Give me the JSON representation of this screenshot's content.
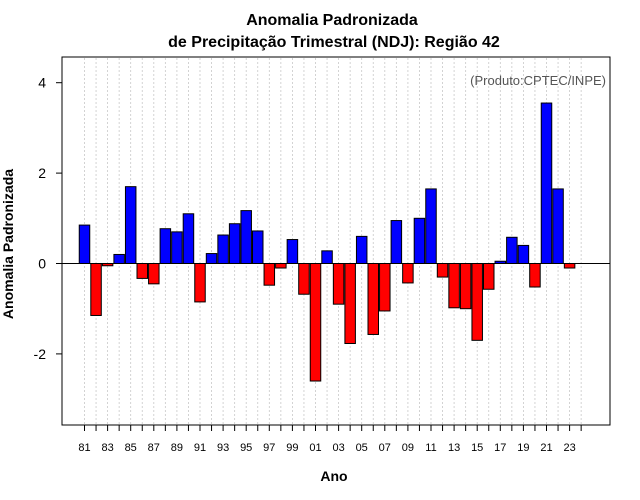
{
  "chart_data": {
    "type": "bar",
    "title_line1": "Anomalia Padronizada",
    "title_line2": "de Precipitação Trimestral (NDJ): Região 42",
    "xlabel": "Ano",
    "ylabel": "Anomalia Padronizada",
    "credit": "(Produto:CPTEC/INPE)",
    "ylim": [
      -3.6,
      4.5
    ],
    "yticks": [
      -2,
      0,
      2,
      4
    ],
    "ytick_labels": [
      "-2",
      "0",
      "2",
      "4"
    ],
    "categories": [
      "81",
      "82",
      "83",
      "84",
      "85",
      "86",
      "87",
      "88",
      "89",
      "90",
      "91",
      "92",
      "93",
      "94",
      "95",
      "96",
      "97",
      "98",
      "99",
      "00",
      "01",
      "02",
      "03",
      "04",
      "05",
      "06",
      "07",
      "08",
      "09",
      "10",
      "11",
      "12",
      "13",
      "14",
      "15",
      "16",
      "17",
      "18",
      "19",
      "20",
      "21",
      "22",
      "23",
      "24"
    ],
    "xtick_labels": [
      "81",
      "",
      "83",
      "",
      "85",
      "",
      "87",
      "",
      "89",
      "",
      "91",
      "",
      "93",
      "",
      "95",
      "",
      "97",
      "",
      "99",
      "",
      "01",
      "",
      "03",
      "",
      "05",
      "",
      "07",
      "",
      "09",
      "",
      "11",
      "",
      "13",
      "",
      "15",
      "",
      "17",
      "",
      "19",
      "",
      "21",
      "",
      "23",
      ""
    ],
    "values": [
      0.85,
      -1.15,
      -0.05,
      0.2,
      1.7,
      -0.33,
      -0.45,
      0.77,
      0.7,
      1.1,
      -0.85,
      0.22,
      0.63,
      0.88,
      1.17,
      0.72,
      -0.48,
      -0.1,
      0.53,
      -0.68,
      -2.6,
      0.28,
      -0.9,
      -1.77,
      0.6,
      -1.57,
      -1.05,
      0.95,
      -0.43,
      1.0,
      1.65,
      -0.3,
      -0.98,
      -1.0,
      -1.7,
      -0.57,
      0.05,
      0.58,
      0.4,
      -0.52,
      3.55,
      1.65,
      -0.1,
      null
    ],
    "positive_color": "#0000ff",
    "negative_color": "#ff0000",
    "grid": true
  }
}
